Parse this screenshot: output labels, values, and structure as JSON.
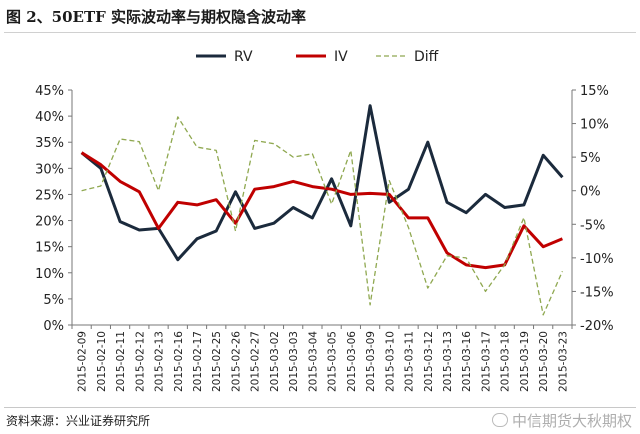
{
  "header": {
    "title": "图 2、50ETF 实际波动率与期权隐含波动率"
  },
  "footer": {
    "source": "资料来源：兴业证券研究所",
    "watermark": "中信期货大秋期权"
  },
  "chart_data": {
    "type": "line",
    "categories": [
      "2015-02-09",
      "2015-02-10",
      "2015-02-11",
      "2015-02-12",
      "2015-02-13",
      "2015-02-16",
      "2015-02-17",
      "2015-02-25",
      "2015-02-26",
      "2015-02-27",
      "2015-03-02",
      "2015-03-03",
      "2015-03-04",
      "2015-03-05",
      "2015-03-06",
      "2015-03-09",
      "2015-03-10",
      "2015-03-11",
      "2015-03-12",
      "2015-03-13",
      "2015-03-16",
      "2015-03-17",
      "2015-03-18",
      "2015-03-19",
      "2015-03-20",
      "2015-03-23"
    ],
    "y_left": {
      "ticks": [
        "0%",
        "5%",
        "10%",
        "15%",
        "20%",
        "25%",
        "30%",
        "35%",
        "40%",
        "45%"
      ],
      "ylim": [
        0,
        45
      ]
    },
    "y_right": {
      "ticks": [
        "-20%",
        "-15%",
        "-10%",
        "-5%",
        "0%",
        "5%",
        "10%",
        "15%"
      ],
      "ylim": [
        -20,
        15
      ]
    },
    "legend_position": "top-center",
    "grid": false,
    "series": [
      {
        "name": "RV",
        "axis": "left",
        "color": "#1b2a3c",
        "style": "solid",
        "values": [
          33,
          30,
          19.8,
          18.2,
          18.5,
          12.5,
          16.5,
          18,
          25.5,
          18.5,
          19.5,
          22.5,
          20.5,
          28,
          19,
          42,
          23.5,
          26,
          35,
          23.5,
          21.5,
          25,
          22.5,
          23,
          32.5,
          28.3
        ]
      },
      {
        "name": "IV",
        "axis": "left",
        "color": "#c00000",
        "style": "solid",
        "values": [
          33,
          30.7,
          27.5,
          25.5,
          18.5,
          23.5,
          23,
          24,
          19.5,
          26,
          26.5,
          27.5,
          26.5,
          26,
          25,
          25.2,
          25,
          20.5,
          20.5,
          13.8,
          11.5,
          11,
          11.5,
          19,
          15,
          16.5
        ]
      },
      {
        "name": "Diff",
        "axis": "right",
        "color": "#8fa850",
        "style": "dashed",
        "values": [
          0,
          0.7,
          7.7,
          7.3,
          0,
          11,
          6.5,
          6,
          -6,
          7.5,
          7,
          5,
          5.5,
          -2,
          6,
          -17,
          1.5,
          -5.5,
          -14.5,
          -9.7,
          -10,
          -15,
          -11,
          -4,
          -18.5,
          -12
        ]
      }
    ]
  }
}
